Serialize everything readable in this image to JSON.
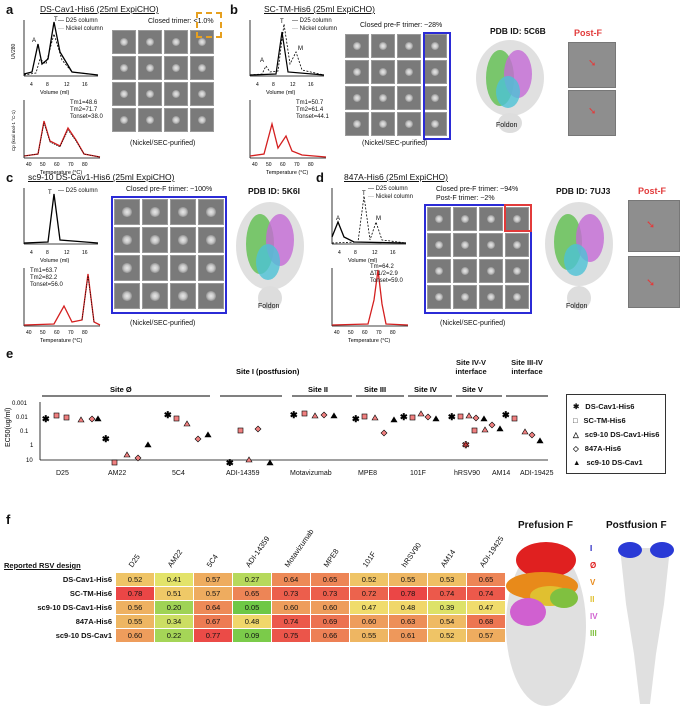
{
  "panels": {
    "a": {
      "label": "a",
      "title": "DS-Cav1-His6 (25ml ExpiCHO)",
      "sec_legend": [
        "D25 column",
        "Nickel column"
      ],
      "peaks": [
        "A",
        "T"
      ],
      "trimer_note": "Closed trimer: <1.0%",
      "dsc_stats": [
        "Tm1=48.6",
        "Tm2=71.7",
        "Tonset=38.0"
      ],
      "xlabel_sec": "Volume (ml)",
      "xlabel_dsc": "Temperature (°C)",
      "ylabel_sec": "UV280",
      "ylabel_dsc": "Cp (kcal mol-1 °C-1)",
      "sec_ticks": [
        "4",
        "8",
        "12",
        "16"
      ],
      "dsc_ticks": [
        "40",
        "50",
        "60",
        "70",
        "80"
      ],
      "caption": "(Nickel/SEC-purified)"
    },
    "b": {
      "label": "b",
      "title": "SC-TM-His6 (25ml ExpiCHO)",
      "sec_legend": [
        "D25 column",
        "Nickel column"
      ],
      "peaks": [
        "A",
        "T",
        "M"
      ],
      "trimer_note": "Closed pre-F trimer: ~28%",
      "dsc_stats": [
        "Tm1=50.7",
        "Tm2=61.4",
        "Tonset=44.1"
      ],
      "xlabel_sec": "Volume (ml)",
      "xlabel_dsc": "Temperature (°C)",
      "sec_ticks": [
        "4",
        "8",
        "12",
        "16"
      ],
      "dsc_ticks": [
        "40",
        "50",
        "60",
        "70",
        "80"
      ],
      "caption": "(Nickel/SEC-purified)",
      "pdb": "PDB ID: 5C6B",
      "foldon": "Foldon",
      "postf": "Post-F"
    },
    "c": {
      "label": "c",
      "title": "sc9-10 DS-Cav1-His6 (25ml ExpiCHO)",
      "sec_legend": [
        "D25 column"
      ],
      "peaks": [
        "T"
      ],
      "trimer_note": "Closed pre-F trimer: ~100%",
      "dsc_stats": [
        "Tm1=63.7",
        "Tm2=82.2",
        "Tonset=56.0"
      ],
      "xlabel_sec": "Volume (ml)",
      "xlabel_dsc": "Temperature (°C)",
      "sec_ticks": [
        "4",
        "8",
        "12",
        "16"
      ],
      "dsc_ticks": [
        "40",
        "50",
        "60",
        "70",
        "80"
      ],
      "caption": "(Nickel/SEC-purified)",
      "pdb": "PDB ID: 5K6I",
      "foldon": "Foldon"
    },
    "d": {
      "label": "d",
      "title": "847A-His6 (25ml ExpiCHO)",
      "sec_legend": [
        "D25 column",
        "Nickel column"
      ],
      "peaks": [
        "A",
        "T",
        "M"
      ],
      "trimer_note": "Closed pre-F trimer: ~94%",
      "trimer_note2": "Post-F trimer: ~2%",
      "dsc_stats": [
        "Tm=64.2",
        "ΔT1/2=2.9",
        "Tonset=59.0"
      ],
      "xlabel_sec": "Volume (ml)",
      "xlabel_dsc": "Temperature (°C)",
      "sec_ticks": [
        "4",
        "8",
        "12",
        "16"
      ],
      "dsc_ticks": [
        "40",
        "50",
        "60",
        "70",
        "80"
      ],
      "caption": "(Nickel/SEC-purified)",
      "pdb": "PDB ID: 7UJ3",
      "foldon": "Foldon",
      "postf": "Post-F"
    },
    "e": {
      "label": "e",
      "ylabel": "EC50(ug/ml)",
      "yticks": [
        "0.001",
        "0.01",
        "0.1",
        "1",
        "10"
      ],
      "sites": [
        "Site Ø",
        "Site I (postfusion)",
        "Site II",
        "Site III",
        "Site IV",
        "Site V",
        "Site IV-V interface",
        "Site III-IV interface"
      ],
      "antibodies": [
        "D25",
        "AM22",
        "5C4",
        "ADI-14359",
        "Motavizumab",
        "MPE8",
        "101F",
        "hRSV90",
        "AM14",
        "ADI-19425"
      ],
      "legend": [
        "DS-Cav1-His6",
        "SC-TM-His6",
        "sc9-10 DS-Cav1-His6",
        "847A-His6",
        "sc9-10 DS-Cav1"
      ]
    },
    "f": {
      "label": "f",
      "row_header": "Reported RSV design",
      "columns": [
        "D25",
        "AM22",
        "5C4",
        "ADI-14359",
        "Motavizumab",
        "MPE8",
        "101F",
        "hRSV90",
        "AM14",
        "ADI-19425"
      ],
      "rows": [
        {
          "name": "DS-Cav1-His6",
          "values": [
            "0.52",
            "0.41",
            "0.57",
            "0.27",
            "0.64",
            "0.65",
            "0.52",
            "0.55",
            "0.53",
            "0.65"
          ]
        },
        {
          "name": "SC-TM-His6",
          "values": [
            "0.78",
            "0.51",
            "0.57",
            "0.65",
            "0.73",
            "0.73",
            "0.72",
            "0.78",
            "0.74",
            "0.74"
          ]
        },
        {
          "name": "sc9-10 DS-Cav1-His6",
          "values": [
            "0.56",
            "0.20",
            "0.64",
            "0.05",
            "0.60",
            "0.60",
            "0.47",
            "0.48",
            "0.39",
            "0.47"
          ]
        },
        {
          "name": "847A-His6",
          "values": [
            "0.55",
            "0.34",
            "0.67",
            "0.48",
            "0.74",
            "0.69",
            "0.60",
            "0.63",
            "0.54",
            "0.68"
          ]
        },
        {
          "name": "sc9-10 DS-Cav1",
          "values": [
            "0.60",
            "0.22",
            "0.77",
            "0.09",
            "0.75",
            "0.66",
            "0.55",
            "0.61",
            "0.52",
            "0.57"
          ]
        }
      ],
      "prefusion_title": "Prefusion F",
      "postfusion_title": "Postfusion F",
      "site_labels": [
        "I",
        "Ø",
        "V",
        "II",
        "IV",
        "III"
      ],
      "site_colors": [
        "#2020c0",
        "#e02020",
        "#e88a1a",
        "#e0c030",
        "#d060d0",
        "#80c040"
      ]
    }
  },
  "colors": {
    "frame_blue": "#2b2bd6",
    "frame_red": "#e23b3b",
    "dsc_red": "#d42020"
  }
}
